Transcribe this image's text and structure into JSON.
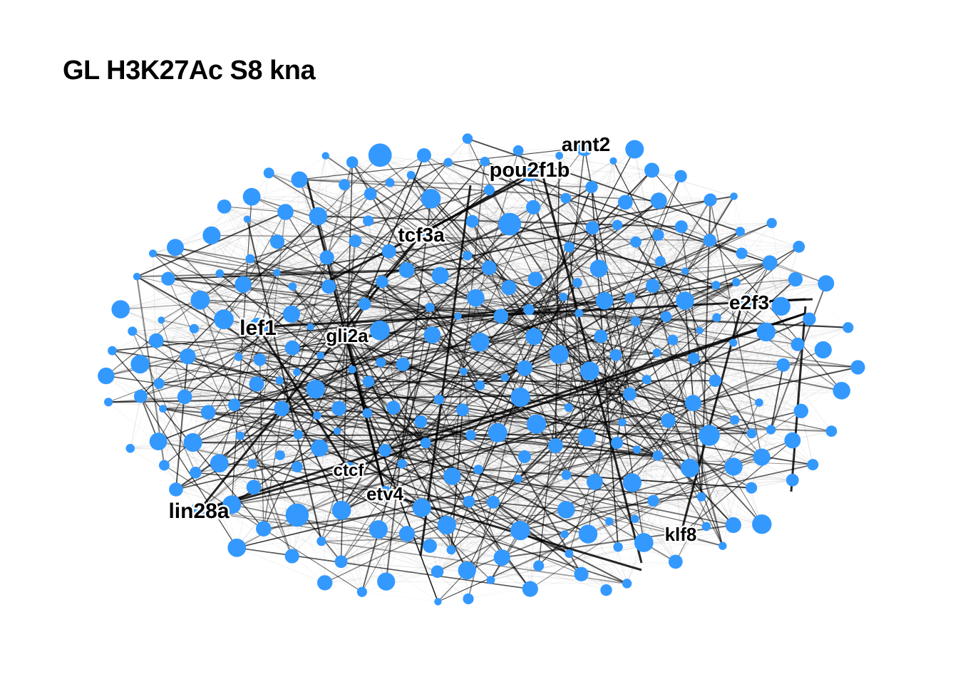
{
  "title": "GL H3K27Ac S8 kna",
  "colors": {
    "node": "#3399ff",
    "edge": "#000000",
    "label": "#000000",
    "halo": "#ffffff"
  },
  "labeled_nodes": [
    {
      "id": "arnt2",
      "label": "arnt2"
    },
    {
      "id": "pou2f1b",
      "label": "pou2f1b"
    },
    {
      "id": "tcf3a",
      "label": "tcf3a"
    },
    {
      "id": "e2f3",
      "label": "e2f3"
    },
    {
      "id": "lef1",
      "label": "lef1"
    },
    {
      "id": "gli2a",
      "label": "gli2a"
    },
    {
      "id": "ctcf",
      "label": "ctcf"
    },
    {
      "id": "etv4",
      "label": "etv4"
    },
    {
      "id": "lin28a",
      "label": "lin28a"
    },
    {
      "id": "klf8",
      "label": "klf8"
    }
  ]
}
